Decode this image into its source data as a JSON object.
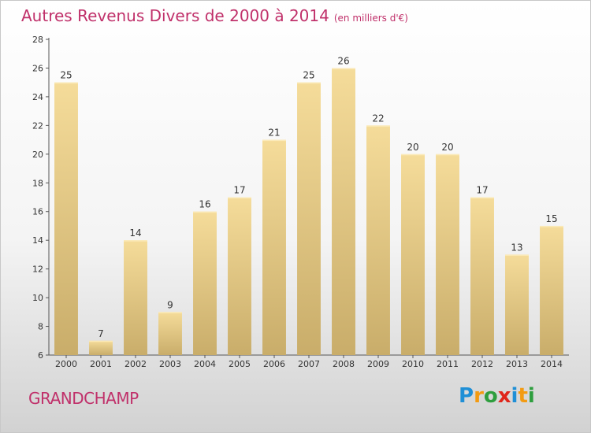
{
  "title": "Autres Revenus Divers de 2000 à 2014",
  "unit": "(en milliers d'€)",
  "town": "GRANDCHAMP",
  "logo": {
    "text": "Proxiti",
    "letters": [
      {
        "ch": "P",
        "color": "#1f8fd6"
      },
      {
        "ch": "r",
        "color": "#f39b12"
      },
      {
        "ch": "o",
        "color": "#2e9e3e"
      },
      {
        "ch": "x",
        "color": "#e0261b"
      },
      {
        "ch": "i",
        "color": "#1f8fd6"
      },
      {
        "ch": "t",
        "color": "#f39b12"
      },
      {
        "ch": "i",
        "color": "#2e9e3e"
      }
    ]
  },
  "chart_data": {
    "type": "bar",
    "title": "Autres Revenus Divers de 2000 à 2014",
    "categories": [
      "2000",
      "2001",
      "2002",
      "2003",
      "2004",
      "2005",
      "2006",
      "2007",
      "2008",
      "2009",
      "2010",
      "2011",
      "2012",
      "2013",
      "2014"
    ],
    "values": [
      25,
      7,
      14,
      9,
      16,
      17,
      21,
      25,
      26,
      22,
      20,
      20,
      17,
      13,
      15
    ],
    "ylim": [
      6,
      28
    ],
    "yticks": [
      6,
      8,
      10,
      12,
      14,
      16,
      18,
      20,
      22,
      24,
      26,
      28
    ],
    "grid": false,
    "bar_color_top": "#f5dc9a",
    "bar_color_bottom": "#c9ad6a"
  }
}
